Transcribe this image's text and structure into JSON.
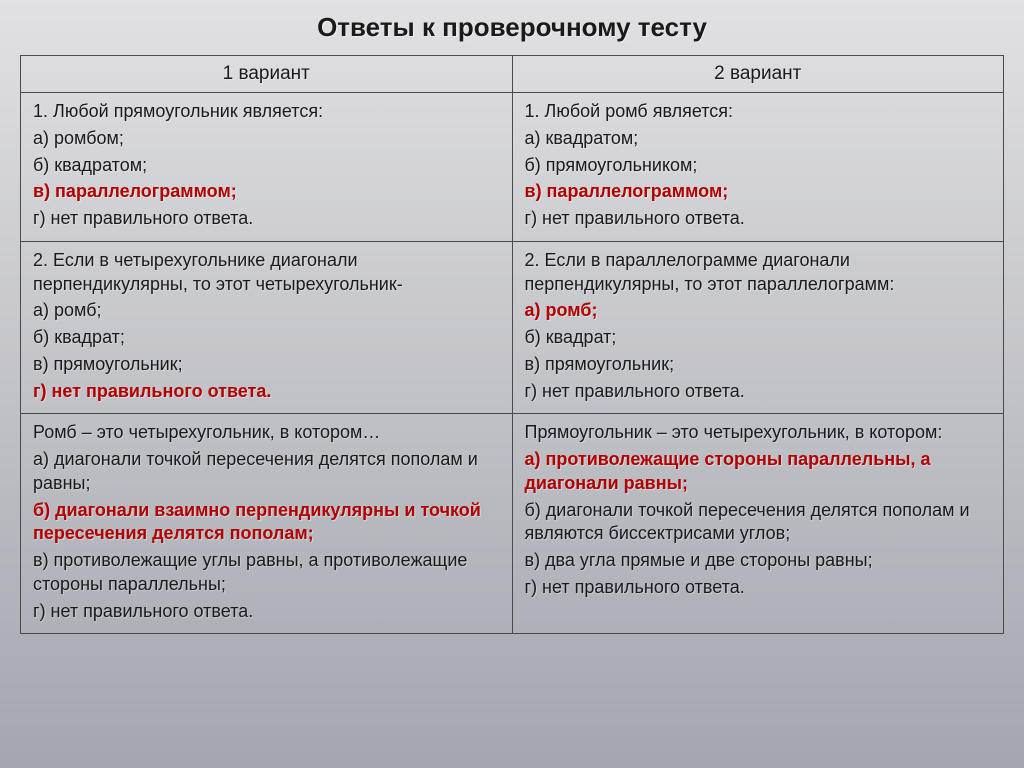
{
  "title": "Ответы к проверочному тесту",
  "header": {
    "col1": "1 вариант",
    "col2": "2 вариант"
  },
  "rows": [
    {
      "left": [
        {
          "t": "1. Любой прямоугольник является:",
          "hl": false
        },
        {
          "t": "а) ромбом;",
          "hl": false
        },
        {
          "t": "б) квадратом;",
          "hl": false
        },
        {
          "t": "в) параллелограммом;",
          "hl": true
        },
        {
          "t": "г) нет правильного ответа.",
          "hl": false
        }
      ],
      "right": [
        {
          "t": "1. Любой ромб является:",
          "hl": false
        },
        {
          "t": "а) квадратом;",
          "hl": false
        },
        {
          "t": "б) прямоугольником;",
          "hl": false
        },
        {
          "t": "в) параллелограммом;",
          "hl": true
        },
        {
          "t": "г) нет правильного ответа.",
          "hl": false
        }
      ]
    },
    {
      "left": [
        {
          "t": "2. Если в четырехугольнике диагонали перпендикулярны, то этот четырехугольник-",
          "hl": false
        },
        {
          "t": "а) ромб;",
          "hl": false
        },
        {
          "t": "б) квадрат;",
          "hl": false
        },
        {
          "t": "в) прямоугольник;",
          "hl": false
        },
        {
          "t": "г) нет правильного ответа.",
          "hl": true
        }
      ],
      "right": [
        {
          "t": "2. Если в параллелограмме диагонали перпендикулярны, то этот параллелограмм:",
          "hl": false
        },
        {
          "t": "а) ромб;",
          "hl": true
        },
        {
          "t": "б) квадрат;",
          "hl": false
        },
        {
          "t": "в) прямоугольник;",
          "hl": false
        },
        {
          "t": "г) нет правильного ответа.",
          "hl": false
        }
      ]
    },
    {
      "left": [
        {
          "t": "Ромб – это четырехугольник, в котором…",
          "hl": false
        },
        {
          "t": "а) диагонали точкой пересечения делятся пополам и равны;",
          "hl": false
        },
        {
          "t": "б) диагонали взаимно перпендикулярны  и точкой пересечения делятся пополам;",
          "hl": true
        },
        {
          "t": "в) противолежащие углы равны, а противолежащие стороны параллельны;",
          "hl": false
        },
        {
          "t": "г) нет правильного ответа.",
          "hl": false
        }
      ],
      "right": [
        {
          "t": "Прямоугольник – это четырехугольник, в котором:",
          "hl": false
        },
        {
          "t": "а) противолежащие стороны параллельны, а диагонали равны;",
          "hl": true
        },
        {
          "t": "б) диагонали точкой пересечения делятся пополам и являются биссектрисами углов;",
          "hl": false
        },
        {
          "t": "в) два угла прямые и две стороны равны;",
          "hl": false
        },
        {
          "t": "г) нет правильного ответа.",
          "hl": false
        }
      ]
    }
  ]
}
